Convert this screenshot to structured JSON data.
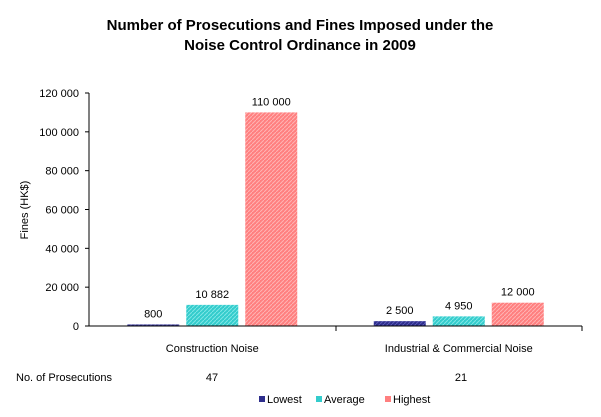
{
  "chart_data": {
    "type": "bar",
    "title_lines": [
      "Number of Prosecutions and Fines Imposed under the",
      "Noise Control Ordinance in 2009"
    ],
    "ylabel": "Fines (HK$)",
    "ylim": [
      0,
      120000
    ],
    "yticks": [
      0,
      20000,
      40000,
      60000,
      80000,
      100000,
      120000
    ],
    "ytick_labels": [
      "0",
      "20 000",
      "40 000",
      "60 000",
      "80 000",
      "100 000",
      "120 000"
    ],
    "categories": [
      "Construction Noise",
      "Industrial & Commercial Noise"
    ],
    "series": [
      {
        "name": "Lowest",
        "color": "#2E2E8C",
        "values": [
          800,
          2500
        ],
        "labels": [
          "800",
          "2 500"
        ]
      },
      {
        "name": "Average",
        "color": "#33CCCC",
        "values": [
          10882,
          4950
        ],
        "labels": [
          "10 882",
          "4 950"
        ]
      },
      {
        "name": "Highest",
        "color": "#FF7F7F",
        "values": [
          110000,
          12000
        ],
        "labels": [
          "110 000",
          "12 000"
        ]
      }
    ],
    "prosecutions_label": "No. of Prosecutions",
    "prosecutions": [
      "47",
      "21"
    ],
    "legend_position": "bottom",
    "grid": false
  }
}
